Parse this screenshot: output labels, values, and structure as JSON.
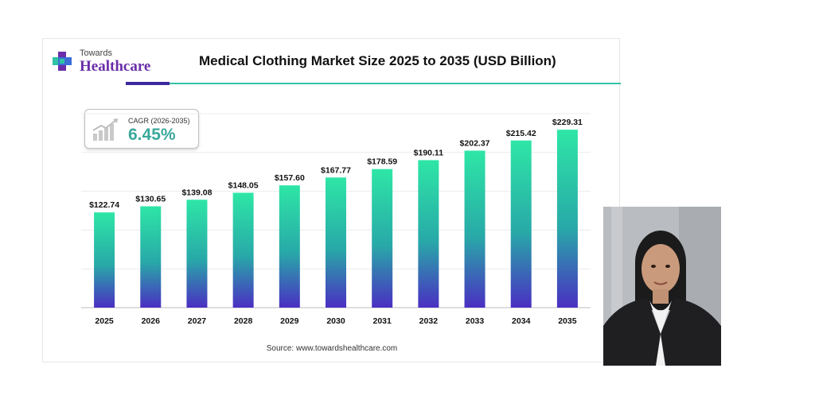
{
  "brand": {
    "line1": "Towards",
    "line2": "Healthcare",
    "colors": {
      "purple": "#6a2ea8",
      "cross_blue": "#3b6fd6",
      "cross_teal": "#2fc2a5"
    }
  },
  "header": {
    "title": "Medical Clothing Market Size 2025 to 2035 (USD Billion)"
  },
  "cagr": {
    "label": "CAGR (2026-2035)",
    "value": "6.45%",
    "icon": "bar-growth-icon"
  },
  "source": "Source: www.towardshealthcare.com",
  "photo": {
    "icon": "person-portrait"
  },
  "chart_data": {
    "type": "bar",
    "title": "Medical Clothing Market Size 2025 to 2035 (USD Billion)",
    "xlabel": "",
    "ylabel": "",
    "categories": [
      "2025",
      "2026",
      "2027",
      "2028",
      "2029",
      "2030",
      "2031",
      "2032",
      "2033",
      "2034",
      "2035"
    ],
    "values": [
      122.74,
      130.65,
      139.08,
      148.05,
      157.6,
      167.77,
      178.59,
      190.11,
      202.37,
      215.42,
      229.31
    ],
    "labels": [
      "$122.74",
      "$130.65",
      "$139.08",
      "$148.05",
      "$157.60",
      "$167.77",
      "$178.59",
      "$190.11",
      "$202.37",
      "$215.42",
      "$229.31"
    ],
    "ylim": [
      0,
      250
    ],
    "grid": true,
    "bar_gradient": {
      "top": "#2ee6a6",
      "middle": "#28a9a8",
      "bottom": "#4a2fc2"
    }
  }
}
